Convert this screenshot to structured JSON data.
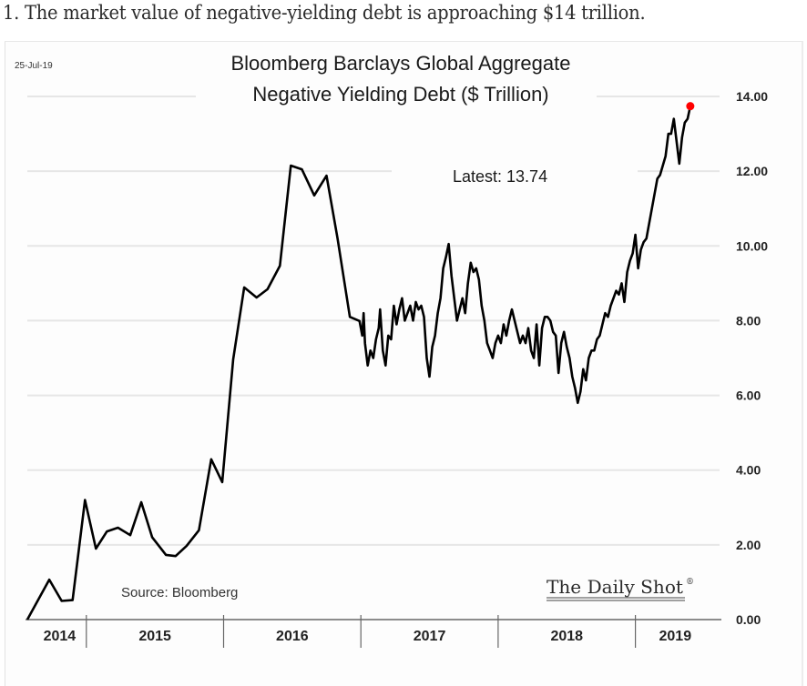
{
  "headline": "1. The market value of negative-yielding debt is approaching $14 trillion.",
  "chart_data": {
    "type": "line",
    "title": "Bloomberg Barclays Global Aggregate",
    "subtitle": "Negative Yielding Debt ($ Trillion)",
    "date_stamp": "25-Jul-19",
    "xlabel": "",
    "ylabel": "",
    "ylim": [
      0,
      14
    ],
    "xlim": [
      2014.57,
      2019.58
    ],
    "y_ticks": [
      "0.00",
      "2.00",
      "4.00",
      "6.00",
      "8.00",
      "10.00",
      "12.00",
      "14.00"
    ],
    "y_tick_values": [
      0,
      2,
      4,
      6,
      8,
      10,
      12,
      14
    ],
    "x_categories": [
      "2014",
      "2015",
      "2016",
      "2017",
      "2018",
      "2019"
    ],
    "year_dividers": [
      2015,
      2016,
      2017,
      2018,
      2019
    ],
    "grid": true,
    "y_axis_side": "right",
    "annotation": "Latest:  13.74",
    "latest_value": 13.74,
    "latest_marker_color": "#ff0000",
    "line_color": "#000000",
    "source": "Source: Bloomberg",
    "brand": "The Daily Shot",
    "brand_mark": "®",
    "series": [
      {
        "name": "Negative Yielding Debt ($ Trillion)",
        "points": [
          [
            2014.57,
            0.0
          ],
          [
            2014.73,
            1.07
          ],
          [
            2014.82,
            0.5
          ],
          [
            2014.9,
            0.52
          ],
          [
            2014.99,
            3.2
          ],
          [
            2015.07,
            1.9
          ],
          [
            2015.15,
            2.36
          ],
          [
            2015.23,
            2.46
          ],
          [
            2015.32,
            2.26
          ],
          [
            2015.4,
            3.14
          ],
          [
            2015.48,
            2.2
          ],
          [
            2015.58,
            1.73
          ],
          [
            2015.65,
            1.7
          ],
          [
            2015.73,
            1.97
          ],
          [
            2015.82,
            2.39
          ],
          [
            2015.91,
            4.29
          ],
          [
            2015.99,
            3.68
          ],
          [
            2016.07,
            6.96
          ],
          [
            2016.15,
            8.89
          ],
          [
            2016.24,
            8.62
          ],
          [
            2016.32,
            8.84
          ],
          [
            2016.41,
            9.47
          ],
          [
            2016.49,
            12.15
          ],
          [
            2016.57,
            12.05
          ],
          [
            2016.66,
            11.35
          ],
          [
            2016.75,
            11.88
          ],
          [
            2016.83,
            10.2
          ],
          [
            2016.92,
            8.1
          ],
          [
            2016.99,
            7.99
          ],
          [
            2017.01,
            7.6
          ],
          [
            2017.02,
            8.2
          ],
          [
            2017.03,
            7.4
          ],
          [
            2017.05,
            6.8
          ],
          [
            2017.07,
            7.2
          ],
          [
            2017.09,
            7.0
          ],
          [
            2017.11,
            7.5
          ],
          [
            2017.13,
            7.8
          ],
          [
            2017.14,
            8.3
          ],
          [
            2017.16,
            7.2
          ],
          [
            2017.18,
            6.8
          ],
          [
            2017.2,
            7.6
          ],
          [
            2017.22,
            7.5
          ],
          [
            2017.24,
            8.4
          ],
          [
            2017.26,
            7.9
          ],
          [
            2017.28,
            8.3
          ],
          [
            2017.3,
            8.6
          ],
          [
            2017.32,
            8.0
          ],
          [
            2017.34,
            8.2
          ],
          [
            2017.36,
            8.4
          ],
          [
            2017.38,
            8.0
          ],
          [
            2017.4,
            8.5
          ],
          [
            2017.42,
            8.3
          ],
          [
            2017.44,
            8.4
          ],
          [
            2017.46,
            8.1
          ],
          [
            2017.48,
            7.0
          ],
          [
            2017.5,
            6.5
          ],
          [
            2017.52,
            7.3
          ],
          [
            2017.54,
            7.6
          ],
          [
            2017.56,
            8.2
          ],
          [
            2017.58,
            8.6
          ],
          [
            2017.6,
            9.4
          ],
          [
            2017.62,
            9.7
          ],
          [
            2017.64,
            10.05
          ],
          [
            2017.66,
            9.2
          ],
          [
            2017.68,
            8.6
          ],
          [
            2017.7,
            8.0
          ],
          [
            2017.72,
            8.3
          ],
          [
            2017.74,
            8.6
          ],
          [
            2017.76,
            8.2
          ],
          [
            2017.78,
            9.0
          ],
          [
            2017.8,
            9.55
          ],
          [
            2017.82,
            9.3
          ],
          [
            2017.84,
            9.4
          ],
          [
            2017.86,
            9.1
          ],
          [
            2017.88,
            8.4
          ],
          [
            2017.9,
            8.0
          ],
          [
            2017.92,
            7.4
          ],
          [
            2017.94,
            7.2
          ],
          [
            2017.96,
            7.0
          ],
          [
            2017.98,
            7.4
          ],
          [
            2018.0,
            7.6
          ],
          [
            2018.02,
            7.4
          ],
          [
            2018.04,
            7.9
          ],
          [
            2018.06,
            7.6
          ],
          [
            2018.08,
            8.0
          ],
          [
            2018.1,
            8.3
          ],
          [
            2018.12,
            8.0
          ],
          [
            2018.14,
            7.7
          ],
          [
            2018.16,
            7.4
          ],
          [
            2018.18,
            7.6
          ],
          [
            2018.2,
            7.4
          ],
          [
            2018.22,
            7.8
          ],
          [
            2018.24,
            7.2
          ],
          [
            2018.26,
            7.0
          ],
          [
            2018.28,
            7.9
          ],
          [
            2018.3,
            6.8
          ],
          [
            2018.32,
            7.8
          ],
          [
            2018.34,
            8.1
          ],
          [
            2018.36,
            8.1
          ],
          [
            2018.38,
            8.0
          ],
          [
            2018.4,
            7.7
          ],
          [
            2018.42,
            7.6
          ],
          [
            2018.44,
            6.6
          ],
          [
            2018.46,
            7.4
          ],
          [
            2018.48,
            7.7
          ],
          [
            2018.5,
            7.3
          ],
          [
            2018.52,
            7.0
          ],
          [
            2018.54,
            6.5
          ],
          [
            2018.56,
            6.2
          ],
          [
            2018.58,
            5.8
          ],
          [
            2018.6,
            6.1
          ],
          [
            2018.62,
            6.7
          ],
          [
            2018.64,
            6.4
          ],
          [
            2018.66,
            7.0
          ],
          [
            2018.68,
            7.2
          ],
          [
            2018.7,
            7.2
          ],
          [
            2018.72,
            7.5
          ],
          [
            2018.74,
            7.6
          ],
          [
            2018.76,
            7.9
          ],
          [
            2018.78,
            8.2
          ],
          [
            2018.8,
            8.1
          ],
          [
            2018.82,
            8.4
          ],
          [
            2018.84,
            8.6
          ],
          [
            2018.86,
            8.8
          ],
          [
            2018.88,
            8.7
          ],
          [
            2018.9,
            9.0
          ],
          [
            2018.92,
            8.5
          ],
          [
            2018.94,
            9.3
          ],
          [
            2018.96,
            9.6
          ],
          [
            2018.98,
            9.8
          ],
          [
            2019.0,
            10.3
          ],
          [
            2019.02,
            9.4
          ],
          [
            2019.04,
            9.9
          ],
          [
            2019.06,
            10.1
          ],
          [
            2019.08,
            10.2
          ],
          [
            2019.1,
            10.6
          ],
          [
            2019.12,
            11.0
          ],
          [
            2019.14,
            11.4
          ],
          [
            2019.16,
            11.8
          ],
          [
            2019.18,
            11.9
          ],
          [
            2019.22,
            12.4
          ],
          [
            2019.24,
            13.0
          ],
          [
            2019.26,
            13.0
          ],
          [
            2019.28,
            13.4
          ],
          [
            2019.3,
            12.8
          ],
          [
            2019.32,
            12.2
          ],
          [
            2019.34,
            12.9
          ],
          [
            2019.36,
            13.3
          ],
          [
            2019.38,
            13.4
          ],
          [
            2019.4,
            13.74
          ]
        ]
      }
    ]
  }
}
